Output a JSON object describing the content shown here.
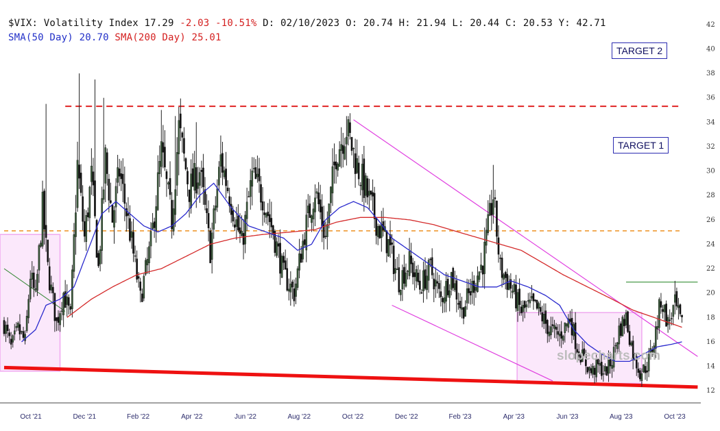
{
  "header": {
    "symbol": "$VIX:",
    "name": "Volatility Index",
    "last": "17.29",
    "change": "-2.03",
    "change_pct": "-10.51%",
    "date": "D: 02/10/2023",
    "open": "O: 20.74",
    "high": "H: 21.94",
    "low": "L: 20.44",
    "close": "C: 20.53",
    "year_high": "Y: 42.71",
    "sma50_label": "SMA(50 Day)",
    "sma50_value": "20.70",
    "sma200_label": "SMA(200 Day)",
    "sma200_value": "25.01"
  },
  "annotations": {
    "target2": "TARGET 2",
    "target1": "TARGET 1"
  },
  "watermark": "slopecharts.com",
  "colors": {
    "price": "#111111",
    "sma50": "#2a2acd",
    "sma200": "#d42a2a",
    "target_dash_red": "#e02020",
    "target_dash_orange": "#f0a040",
    "channel": "#e040e0",
    "support": "#ee1111",
    "box_fill": "#fbe8fb",
    "box_stroke": "#f0a8f0"
  },
  "chart_data": {
    "type": "candlestick",
    "ylim": [
      11,
      43
    ],
    "y_ticks": [
      12,
      14,
      16,
      18,
      20,
      22,
      24,
      26,
      28,
      30,
      32,
      34,
      36,
      38,
      40,
      42
    ],
    "x_tick_labels": [
      "Oct '21",
      "Dec '21",
      "Feb '22",
      "Apr '22",
      "Jun '22",
      "Aug '22",
      "Oct '22",
      "Dec '22",
      "Feb '23",
      "Apr '23",
      "Jun '23",
      "Aug '23",
      "Oct '23"
    ],
    "price_path": [
      [
        0,
        17.5
      ],
      [
        4,
        15.5
      ],
      [
        8,
        17.0
      ],
      [
        12,
        16.0
      ],
      [
        15,
        21.5
      ],
      [
        18,
        19.5
      ],
      [
        22,
        27.0
      ],
      [
        25,
        22.0
      ],
      [
        30,
        17.5
      ],
      [
        34,
        20.0
      ],
      [
        38,
        18.0
      ],
      [
        42,
        30.5
      ],
      [
        46,
        24.5
      ],
      [
        50,
        29.5
      ],
      [
        54,
        22.0
      ],
      [
        58,
        31.0
      ],
      [
        62,
        26.0
      ],
      [
        66,
        30.0
      ],
      [
        72,
        25.0
      ],
      [
        78,
        19.5
      ],
      [
        84,
        24.0
      ],
      [
        90,
        31.5
      ],
      [
        96,
        26.0
      ],
      [
        100,
        33.5
      ],
      [
        106,
        28.5
      ],
      [
        112,
        30.0
      ],
      [
        118,
        23.5
      ],
      [
        124,
        31.0
      ],
      [
        130,
        27.5
      ],
      [
        136,
        24.0
      ],
      [
        142,
        29.5
      ],
      [
        148,
        28.0
      ],
      [
        154,
        25.0
      ],
      [
        160,
        21.5
      ],
      [
        166,
        20.0
      ],
      [
        172,
        25.0
      ],
      [
        178,
        28.5
      ],
      [
        184,
        24.5
      ],
      [
        190,
        31.5
      ],
      [
        196,
        33.5
      ],
      [
        202,
        30.5
      ],
      [
        208,
        28.0
      ],
      [
        214,
        25.5
      ],
      [
        220,
        24.0
      ],
      [
        226,
        21.0
      ],
      [
        232,
        22.5
      ],
      [
        238,
        20.5
      ],
      [
        244,
        22.0
      ],
      [
        250,
        19.5
      ],
      [
        256,
        21.5
      ],
      [
        262,
        18.5
      ],
      [
        268,
        20.5
      ],
      [
        274,
        22.5
      ],
      [
        280,
        28.0
      ],
      [
        284,
        22.0
      ],
      [
        290,
        20.5
      ],
      [
        296,
        18.5
      ],
      [
        302,
        19.0
      ],
      [
        306,
        18.5
      ],
      [
        312,
        17.0
      ],
      [
        318,
        16.5
      ],
      [
        324,
        18.0
      ],
      [
        328,
        15.5
      ],
      [
        332,
        14.5
      ],
      [
        336,
        13.5
      ],
      [
        340,
        14.0
      ],
      [
        344,
        13.5
      ],
      [
        348,
        14.5
      ],
      [
        352,
        17.0
      ],
      [
        356,
        18.0
      ],
      [
        360,
        15.0
      ],
      [
        364,
        13.5
      ],
      [
        368,
        14.0
      ],
      [
        372,
        16.0
      ],
      [
        376,
        19.5
      ],
      [
        380,
        17.5
      ],
      [
        384,
        19.0
      ],
      [
        388,
        17.3
      ]
    ],
    "spikes": [
      [
        24,
        35.5
      ],
      [
        43,
        38.0
      ],
      [
        52,
        37.5
      ],
      [
        57,
        36.0
      ],
      [
        90,
        35.0
      ],
      [
        98,
        34.5
      ],
      [
        110,
        34.0
      ],
      [
        196,
        34.5
      ],
      [
        280,
        30.5
      ],
      [
        384,
        21.0
      ]
    ],
    "sma50_path": [
      [
        10,
        16.0
      ],
      [
        18,
        17.0
      ],
      [
        24,
        19.0
      ],
      [
        32,
        19.5
      ],
      [
        40,
        20.5
      ],
      [
        48,
        23.5
      ],
      [
        56,
        26.5
      ],
      [
        64,
        27.5
      ],
      [
        72,
        26.5
      ],
      [
        80,
        25.5
      ],
      [
        88,
        25.0
      ],
      [
        96,
        25.5
      ],
      [
        104,
        26.5
      ],
      [
        112,
        28.0
      ],
      [
        120,
        29.0
      ],
      [
        130,
        27.0
      ],
      [
        140,
        25.5
      ],
      [
        150,
        25.0
      ],
      [
        160,
        24.5
      ],
      [
        168,
        23.5
      ],
      [
        176,
        24.0
      ],
      [
        184,
        26.0
      ],
      [
        192,
        27.0
      ],
      [
        200,
        27.5
      ],
      [
        208,
        27.0
      ],
      [
        214,
        26.0
      ],
      [
        222,
        24.5
      ],
      [
        232,
        23.5
      ],
      [
        242,
        22.5
      ],
      [
        252,
        21.5
      ],
      [
        262,
        21.0
      ],
      [
        272,
        20.5
      ],
      [
        282,
        20.5
      ],
      [
        290,
        21.0
      ],
      [
        300,
        20.5
      ],
      [
        310,
        19.8
      ],
      [
        318,
        19.0
      ],
      [
        326,
        17.0
      ],
      [
        334,
        15.8
      ],
      [
        342,
        15.0
      ],
      [
        350,
        14.4
      ],
      [
        358,
        14.4
      ],
      [
        366,
        15.0
      ],
      [
        374,
        15.6
      ],
      [
        382,
        15.8
      ],
      [
        388,
        16.0
      ]
    ],
    "sma200_path": [
      [
        36,
        18.0
      ],
      [
        50,
        19.5
      ],
      [
        62,
        20.5
      ],
      [
        76,
        21.5
      ],
      [
        90,
        22.0
      ],
      [
        104,
        23.0
      ],
      [
        118,
        24.0
      ],
      [
        132,
        24.5
      ],
      [
        148,
        24.8
      ],
      [
        164,
        25.0
      ],
      [
        178,
        25.2
      ],
      [
        190,
        25.8
      ],
      [
        204,
        26.2
      ],
      [
        218,
        26.2
      ],
      [
        232,
        26.0
      ],
      [
        246,
        25.6
      ],
      [
        260,
        25.0
      ],
      [
        272,
        24.5
      ],
      [
        284,
        24.0
      ],
      [
        296,
        23.5
      ],
      [
        308,
        22.5
      ],
      [
        320,
        21.5
      ],
      [
        334,
        20.5
      ],
      [
        348,
        19.5
      ],
      [
        360,
        18.6
      ],
      [
        372,
        18.0
      ],
      [
        384,
        17.4
      ],
      [
        388,
        17.2
      ]
    ],
    "levels": [
      {
        "name": "target-2",
        "y": 35.3,
        "x_from": 35,
        "x_to": 388,
        "style": "dashed-red"
      },
      {
        "name": "target-1",
        "y": 25.1,
        "x_from": 0,
        "x_to": 388,
        "style": "dashed-orange"
      },
      {
        "name": "resistance",
        "y": 20.9,
        "x_from": 356,
        "x_to": 397,
        "style": "solid-green"
      }
    ],
    "trendlines": [
      {
        "name": "channel-upper",
        "from": [
          200,
          34.2
        ],
        "to": [
          397,
          14.8
        ],
        "style": "magenta"
      },
      {
        "name": "channel-lower",
        "from": [
          222,
          19.0
        ],
        "to": [
          314,
          12.8
        ],
        "style": "magenta"
      },
      {
        "name": "support-line",
        "from": [
          0,
          13.9
        ],
        "to": [
          397,
          12.3
        ],
        "style": "thick-red"
      },
      {
        "name": "green-descending",
        "from": [
          0,
          22.0
        ],
        "to": [
          35,
          18.5
        ],
        "style": "green"
      }
    ],
    "boxes": [
      {
        "name": "consolidation-box-2021",
        "x": [
          0,
          32
        ],
        "y": [
          13.6,
          24.8
        ]
      },
      {
        "name": "consolidation-box-2023",
        "x": [
          296,
          365
        ],
        "y": [
          12.6,
          18.4
        ]
      }
    ]
  }
}
